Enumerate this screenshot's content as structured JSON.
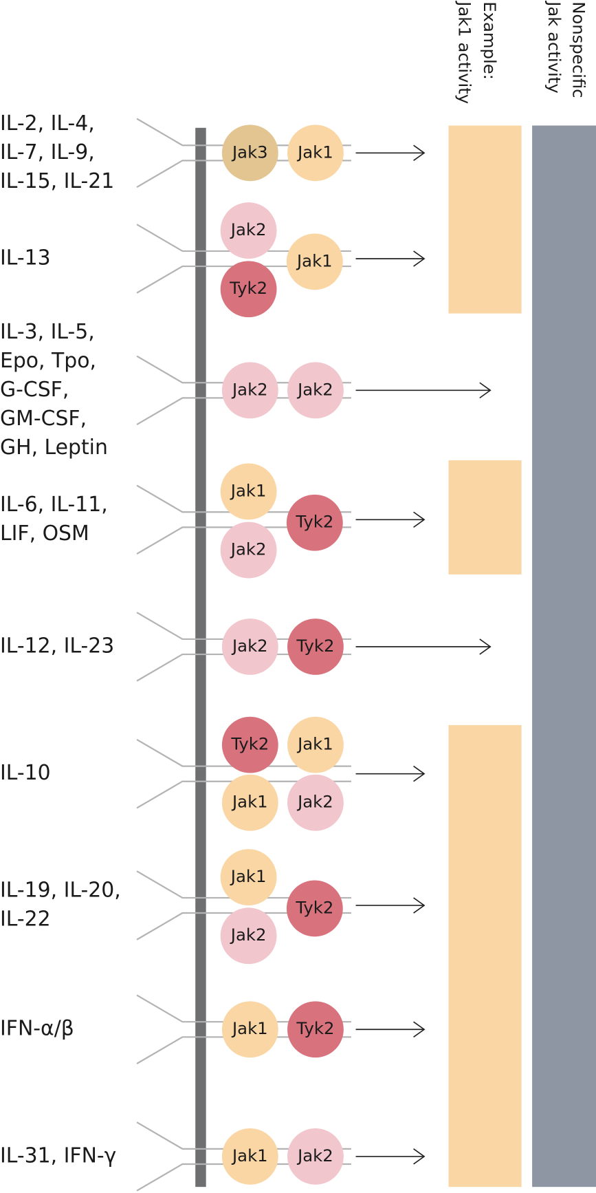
{
  "headers": [
    [
      "Example:",
      "Jak1 activity"
    ],
    [
      "Nonspecific",
      "Jak activity"
    ]
  ],
  "rows": [
    {
      "label": [
        "IL-2, IL-4,",
        "IL-7, IL-9,",
        "IL-15, IL-21"
      ],
      "kinases": [
        {
          "label": "Jak3",
          "color": "#e2c591"
        },
        {
          "label": "Jak1",
          "color": "#fad6a4"
        }
      ]
    },
    {
      "label": [
        "IL-13"
      ],
      "kinases": [
        {
          "label": "Jak2",
          "color": "#f1c6cd"
        },
        {
          "label": "Tyk2",
          "color": "#d8737e"
        },
        {
          "label": "Jak1",
          "color": "#fad6a4"
        }
      ]
    },
    {
      "label": [
        "IL-3, IL-5,",
        "Epo, Tpo,",
        "G-CSF,",
        "GM-CSF,",
        "GH, Leptin"
      ],
      "kinases": [
        {
          "label": "Jak2",
          "color": "#f1c6cd"
        },
        {
          "label": "Jak2",
          "color": "#f1c6cd"
        }
      ]
    },
    {
      "label": [
        "IL-6, IL-11,",
        "LIF, OSM"
      ],
      "kinases": [
        {
          "label": "Jak1",
          "color": "#fad6a4"
        },
        {
          "label": "Jak2",
          "color": "#f1c6cd"
        },
        {
          "label": "Tyk2",
          "color": "#d8737e"
        }
      ]
    },
    {
      "label": [
        "IL-12, IL-23"
      ],
      "kinases": [
        {
          "label": "Jak2",
          "color": "#f1c6cd"
        },
        {
          "label": "Tyk2",
          "color": "#d8737e"
        }
      ]
    },
    {
      "label": [
        "IL-10"
      ],
      "kinases": [
        {
          "label": "Tyk2",
          "color": "#d8737e"
        },
        {
          "label": "Jak1",
          "color": "#fad6a4"
        },
        {
          "label": "Jak1",
          "color": "#fad6a4"
        },
        {
          "label": "Jak2",
          "color": "#f1c6cd"
        }
      ]
    },
    {
      "label": [
        "IL-19, IL-20,",
        "IL-22"
      ],
      "kinases": [
        {
          "label": "Jak1",
          "color": "#fad6a4"
        },
        {
          "label": "Jak2",
          "color": "#f1c6cd"
        },
        {
          "label": "Tyk2",
          "color": "#d8737e"
        }
      ]
    },
    {
      "label": [
        "IFN-α/β"
      ],
      "kinases": [
        {
          "label": "Jak1",
          "color": "#fad6a4"
        },
        {
          "label": "Tyk2",
          "color": "#d8737e"
        }
      ]
    },
    {
      "label": [
        "IL-31, IFN-γ"
      ],
      "kinases": [
        {
          "label": "Jak1",
          "color": "#fad6a4"
        },
        {
          "label": "Jak2",
          "color": "#f1c6cd"
        }
      ]
    }
  ]
}
